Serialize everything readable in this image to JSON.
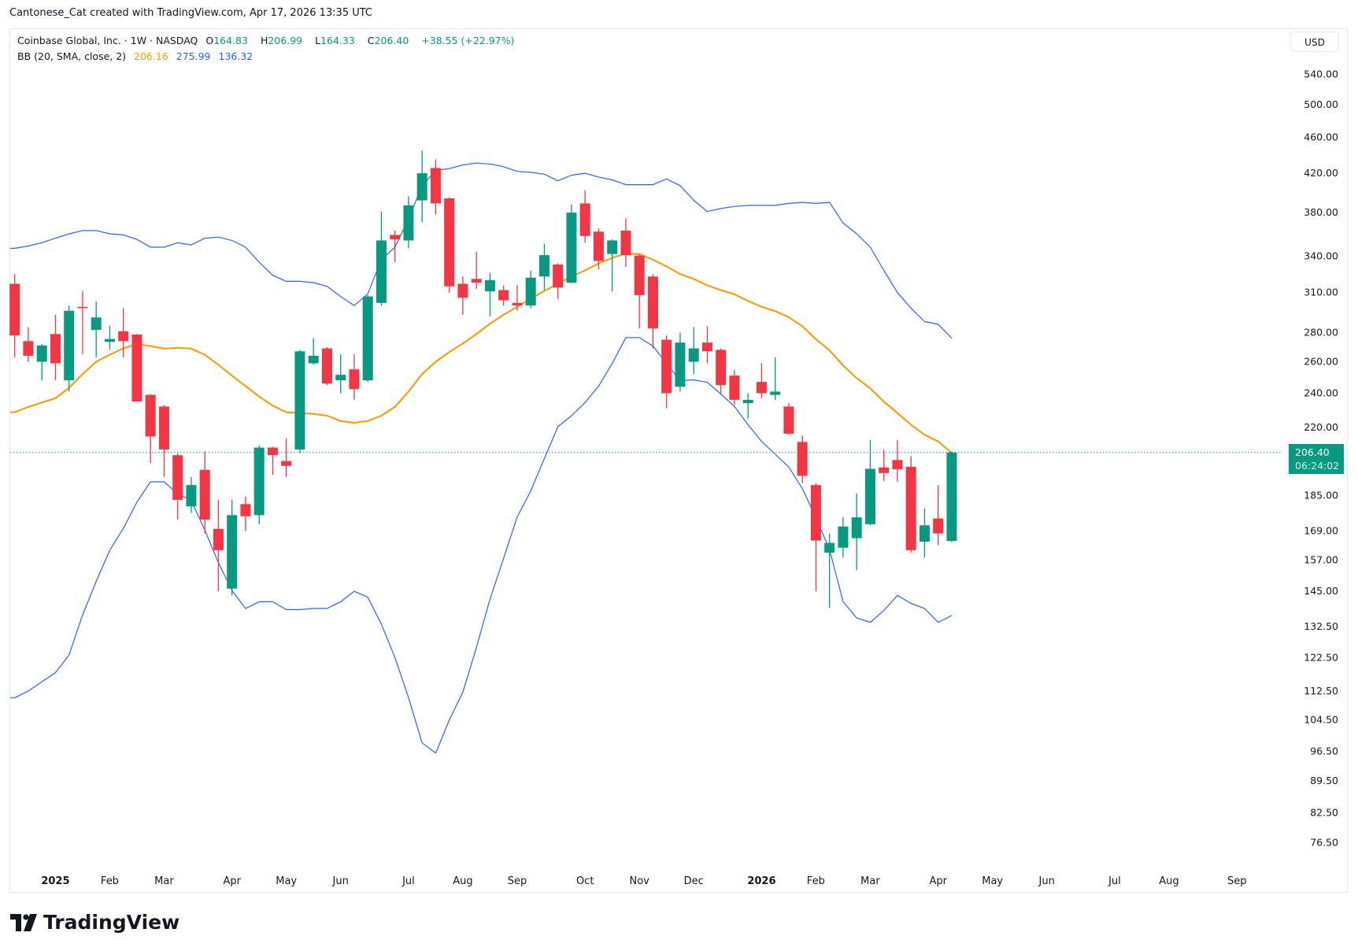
{
  "attribution": "Cantonese_Cat created with TradingView.com, Apr 17, 2026 13:35 UTC",
  "legend": {
    "symbol": "Coinbase Global, Inc. · 1W · NASDAQ",
    "o_label": "O",
    "o": "164.83",
    "h_label": "H",
    "h": "206.99",
    "l_label": "L",
    "l": "164.33",
    "c_label": "C",
    "c": "206.40",
    "change": "+38.55 (+22.97%)",
    "bb_label": "BB (20, SMA, close, 2)",
    "bb_basis": "206.16",
    "bb_upper": "275.99",
    "bb_lower": "136.32"
  },
  "currency": "USD",
  "price_tag": {
    "price": "206.40",
    "countdown": "06:24:02"
  },
  "logo_text": "TradingView",
  "colors": {
    "up": "#089981",
    "down": "#F23645",
    "basis": "#FF9800",
    "bands": "#2962FF",
    "text": "#131722"
  },
  "chart_data": {
    "type": "candlestick",
    "title": "Coinbase Global, Inc. · 1W · NASDAQ",
    "yscale": "log",
    "ylim": [
      70,
      600
    ],
    "y_ticks": [
      540,
      500,
      460,
      420,
      380,
      340,
      310,
      280,
      260,
      240,
      220,
      185,
      169,
      157,
      145,
      132.5,
      122.5,
      112.5,
      104.5,
      96.5,
      89.5,
      82.5,
      76.5
    ],
    "y_tick_labels": [
      "540.00",
      "500.00",
      "460.00",
      "420.00",
      "380.00",
      "340.00",
      "310.00",
      "280.00",
      "260.00",
      "240.00",
      "220.00",
      "185.00",
      "169.00",
      "157.00",
      "145.00",
      "132.50",
      "122.50",
      "112.50",
      "104.50",
      "96.50",
      "89.50",
      "82.50",
      "76.50"
    ],
    "x_ticks": [
      {
        "label": "2025",
        "index": 3,
        "bold": true
      },
      {
        "label": "Feb",
        "index": 7
      },
      {
        "label": "Mar",
        "index": 11
      },
      {
        "label": "Apr",
        "index": 16
      },
      {
        "label": "May",
        "index": 20
      },
      {
        "label": "Jun",
        "index": 24
      },
      {
        "label": "Jul",
        "index": 29
      },
      {
        "label": "Aug",
        "index": 33
      },
      {
        "label": "Sep",
        "index": 37
      },
      {
        "label": "Oct",
        "index": 42
      },
      {
        "label": "Nov",
        "index": 46
      },
      {
        "label": "Dec",
        "index": 50
      },
      {
        "label": "2026",
        "index": 55,
        "bold": true
      },
      {
        "label": "Feb",
        "index": 59
      },
      {
        "label": "Mar",
        "index": 63
      },
      {
        "label": "Apr",
        "index": 68
      },
      {
        "label": "May",
        "index": 72
      },
      {
        "label": "Jun",
        "index": 76
      },
      {
        "label": "Jul",
        "index": 81
      },
      {
        "label": "Aug",
        "index": 85
      },
      {
        "label": "Sep",
        "index": 90
      }
    ],
    "last_price": 206.4,
    "ohlc": [
      [
        317,
        325,
        263,
        278
      ],
      [
        274,
        284,
        260,
        264
      ],
      [
        260,
        272,
        248,
        271
      ],
      [
        279,
        293,
        248,
        259
      ],
      [
        248,
        300,
        241,
        296
      ],
      [
        299,
        311,
        265,
        298
      ],
      [
        282,
        303,
        263,
        291
      ],
      [
        273.5,
        285,
        268,
        275.5
      ],
      [
        281,
        298,
        263,
        274
      ],
      [
        278.6,
        279,
        235,
        235
      ],
      [
        239,
        239.5,
        201,
        215
      ],
      [
        232,
        233,
        194,
        208
      ],
      [
        205,
        206,
        174,
        183
      ],
      [
        180,
        194,
        177,
        190
      ],
      [
        197.5,
        207,
        168,
        174
      ],
      [
        170,
        183,
        145,
        161
      ],
      [
        146,
        183,
        143.5,
        176
      ],
      [
        181,
        184.5,
        169,
        175.5
      ],
      [
        176,
        210,
        172,
        209
      ],
      [
        209,
        209.5,
        195,
        205
      ],
      [
        202,
        214,
        194,
        199.5
      ],
      [
        208,
        268,
        206,
        267
      ],
      [
        259,
        276,
        258,
        264
      ],
      [
        269,
        270,
        245,
        246
      ],
      [
        248,
        265,
        240,
        251.5
      ],
      [
        255,
        265,
        236,
        242.5
      ],
      [
        248,
        308,
        247,
        307
      ],
      [
        302,
        381,
        300,
        354
      ],
      [
        359,
        363,
        335,
        355
      ],
      [
        354,
        396,
        347,
        387
      ],
      [
        392,
        445,
        371,
        420
      ],
      [
        425.6,
        435,
        378,
        389
      ],
      [
        394,
        395,
        310,
        315
      ],
      [
        317,
        323,
        293,
        306
      ],
      [
        321,
        344,
        313,
        318
      ],
      [
        311,
        326,
        292,
        320
      ],
      [
        312,
        315.6,
        300,
        304
      ],
      [
        302,
        316,
        296,
        300
      ],
      [
        300,
        328,
        298,
        322
      ],
      [
        323,
        351,
        312,
        341
      ],
      [
        333,
        334,
        305,
        314
      ],
      [
        318,
        388,
        317.5,
        380
      ],
      [
        389,
        402,
        352,
        358
      ],
      [
        362,
        365,
        329,
        336
      ],
      [
        342,
        355,
        311,
        354
      ],
      [
        363,
        374.5,
        331,
        341
      ],
      [
        340.6,
        342,
        283,
        308
      ],
      [
        323,
        325,
        269,
        283
      ],
      [
        275,
        278,
        231,
        240
      ],
      [
        244,
        280,
        241,
        273
      ],
      [
        260,
        284,
        252,
        269
      ],
      [
        273,
        284.5,
        259,
        267
      ],
      [
        268,
        269,
        239,
        245
      ],
      [
        251,
        254.5,
        233,
        236
      ],
      [
        234,
        240,
        225,
        236
      ],
      [
        247,
        259,
        237,
        240
      ],
      [
        239,
        263,
        236,
        241
      ],
      [
        232,
        234,
        216,
        216.5
      ],
      [
        212,
        215.5,
        191,
        194.5
      ],
      [
        190,
        191,
        145,
        165
      ],
      [
        160,
        168,
        139,
        164
      ],
      [
        162,
        175,
        158,
        171
      ],
      [
        166,
        186,
        153,
        175
      ],
      [
        172,
        213,
        171.5,
        198
      ],
      [
        198.7,
        207.9,
        192,
        195.9
      ],
      [
        202.5,
        213,
        191.7,
        197.8
      ],
      [
        199,
        204.5,
        160,
        161
      ],
      [
        164.5,
        179,
        158,
        171.5
      ],
      [
        174.5,
        190,
        163,
        168
      ],
      [
        164.83,
        206.99,
        164.33,
        206.4
      ]
    ],
    "bb_upper": [
      347,
      349,
      352,
      356,
      360,
      363,
      363,
      360,
      359,
      355,
      348,
      348,
      352,
      350,
      356,
      357,
      354,
      348,
      335,
      324,
      319,
      319,
      318,
      315,
      307,
      300,
      309,
      337,
      348,
      374,
      407,
      423,
      425,
      429,
      431,
      430,
      427,
      422,
      421,
      419,
      412,
      418,
      420,
      416,
      413,
      408,
      408,
      408,
      414,
      407,
      392,
      381,
      384,
      386,
      387,
      387,
      387,
      389,
      390,
      389,
      390,
      370,
      360,
      348,
      328,
      310,
      298,
      288,
      286,
      275.99
    ],
    "bb_basis": [
      228.7,
      231.8,
      234.4,
      237,
      243.3,
      252,
      260,
      264.7,
      269,
      272,
      270.6,
      268.8,
      269.4,
      268.8,
      264.7,
      258,
      251,
      244.4,
      238,
      232.5,
      228.7,
      228.2,
      227.7,
      226.7,
      223.6,
      222.6,
      223.6,
      226.7,
      231.8,
      241,
      252,
      260,
      266.5,
      272.4,
      279,
      286.5,
      293,
      299,
      305,
      311.4,
      317,
      323,
      328,
      334,
      338.6,
      342.4,
      342,
      337,
      331.4,
      325,
      321,
      315.7,
      312,
      308.7,
      303.5,
      299,
      295.7,
      291.2,
      284.6,
      275.3,
      267.6,
      257.5,
      249.4,
      243,
      234.9,
      228.2,
      221.5,
      215.9,
      212.3,
      206.16
    ],
    "bb_lower": [
      110.6,
      112.5,
      115.2,
      117.9,
      123.3,
      136.6,
      148.7,
      160.9,
      170.2,
      181.9,
      191.6,
      191.6,
      185.8,
      182.7,
      169.4,
      156,
      145.3,
      138.8,
      141.2,
      141.2,
      138.4,
      138.4,
      138.8,
      138.8,
      141.2,
      145,
      142.8,
      133.4,
      122.5,
      110.6,
      98.6,
      96.1,
      104.5,
      112.2,
      125.7,
      142.2,
      157.7,
      175.2,
      187.2,
      203.3,
      220.4,
      226.7,
      234.4,
      244.4,
      258.9,
      276.5,
      276.5,
      270.6,
      258.9,
      247.8,
      248.3,
      246.7,
      239.5,
      232,
      221.5,
      212.3,
      205.5,
      198.9,
      188.3,
      174.8,
      161.3,
      141.2,
      135.5,
      134,
      138.1,
      143.5,
      140.6,
      138.8,
      134,
      136.32
    ]
  }
}
